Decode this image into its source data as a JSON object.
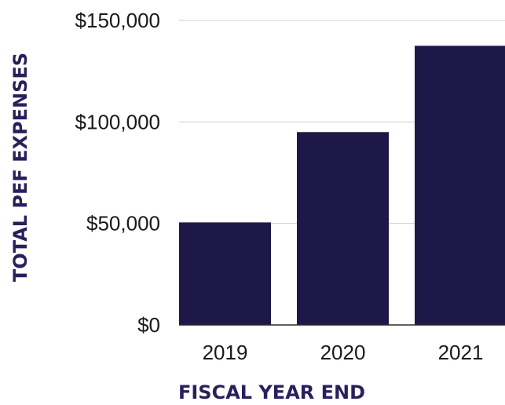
{
  "chart_data": {
    "type": "bar",
    "categories": [
      "2019",
      "2020",
      "2021"
    ],
    "values": [
      50500,
      95000,
      137500
    ],
    "xlabel": "FISCAL YEAR END",
    "ylabel": "TOTAL PEF EXPENSES",
    "ylim": [
      0,
      150000
    ],
    "yticks": [
      0,
      50000,
      100000,
      150000
    ],
    "ytick_labels": [
      "$0",
      "$50,000",
      "$100,000",
      "$150,000"
    ],
    "grid": true,
    "legend": "none",
    "colors": {
      "bar": "#1e1848",
      "axis_title": "#2a1f5c",
      "grid": "#d0d0d0"
    }
  }
}
